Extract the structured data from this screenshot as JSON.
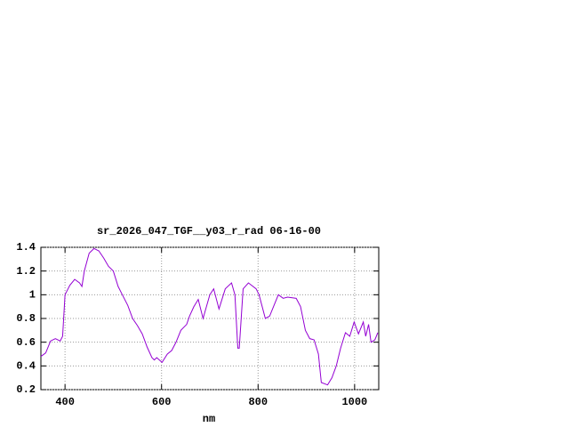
{
  "chart_data": {
    "type": "line",
    "title": "sr_2026_047_TGF__y03_r_rad 06-16-00",
    "xlabel": "nm",
    "x": [
      350,
      360,
      370,
      380,
      390,
      395,
      400,
      410,
      420,
      430,
      435,
      440,
      450,
      460,
      470,
      480,
      490,
      500,
      510,
      520,
      530,
      540,
      550,
      560,
      570,
      580,
      585,
      590,
      601,
      612,
      621,
      630,
      640,
      652,
      658,
      667,
      676,
      686,
      700,
      708,
      719,
      732,
      745,
      752,
      758,
      761,
      769,
      780,
      796,
      802,
      815,
      824,
      842,
      852,
      861,
      879,
      888,
      898,
      907,
      916,
      925,
      931,
      944,
      953,
      962,
      971,
      981,
      990,
      999,
      1008,
      1018,
      1023,
      1029,
      1034,
      1042,
      1048
    ],
    "series": [
      {
        "name": "rad",
        "color": "#9400d3",
        "values": [
          0.48,
          0.51,
          0.61,
          0.63,
          0.61,
          0.65,
          1.0,
          1.08,
          1.13,
          1.1,
          1.07,
          1.2,
          1.35,
          1.39,
          1.37,
          1.31,
          1.24,
          1.2,
          1.07,
          0.99,
          0.91,
          0.8,
          0.74,
          0.67,
          0.56,
          0.47,
          0.45,
          0.47,
          0.43,
          0.5,
          0.53,
          0.6,
          0.7,
          0.75,
          0.82,
          0.9,
          0.96,
          0.8,
          1.0,
          1.05,
          0.88,
          1.05,
          1.1,
          1.0,
          0.55,
          0.55,
          1.05,
          1.1,
          1.05,
          1.0,
          0.8,
          0.82,
          1.0,
          0.97,
          0.98,
          0.97,
          0.9,
          0.7,
          0.63,
          0.62,
          0.5,
          0.26,
          0.24,
          0.3,
          0.4,
          0.55,
          0.68,
          0.65,
          0.77,
          0.67,
          0.77,
          0.65,
          0.75,
          0.6,
          0.62,
          0.68
        ]
      }
    ],
    "xlim": [
      350,
      1050
    ],
    "xticks": [
      400,
      600,
      800,
      1000
    ],
    "ylim": [
      0.2,
      1.4
    ],
    "yticks": [
      0.2,
      0.4,
      0.6,
      0.8,
      1,
      1.2,
      1.4
    ],
    "grid": true
  }
}
